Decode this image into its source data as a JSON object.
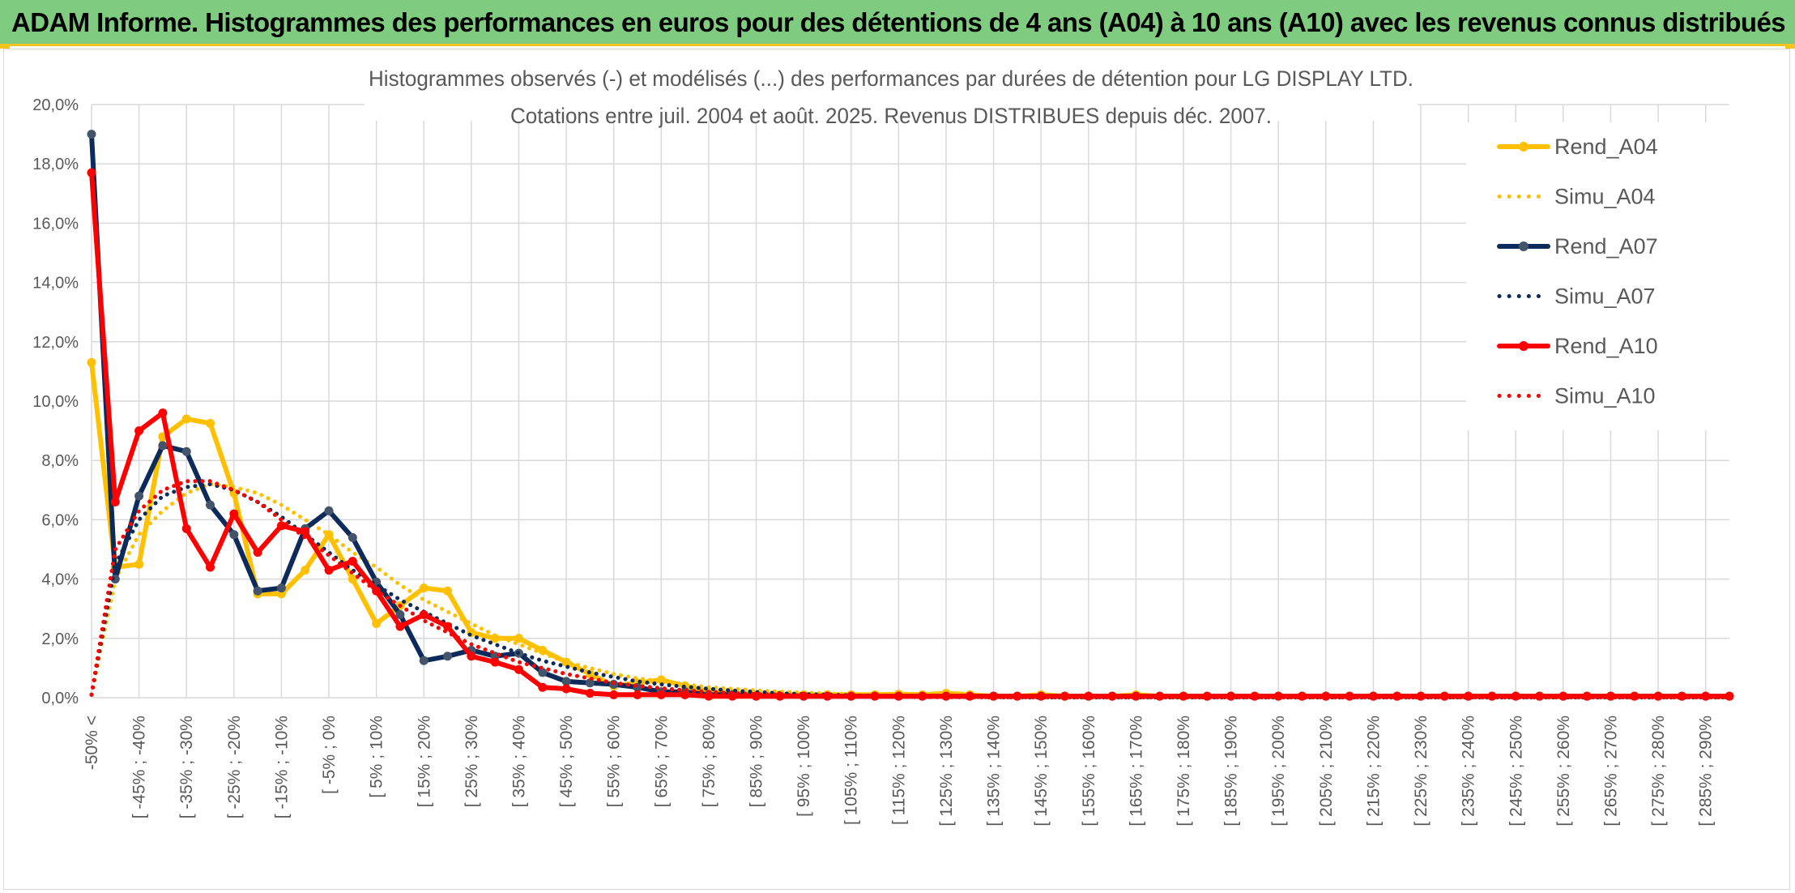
{
  "banner": {
    "title": "ADAM Informe. Histogrammes des performances en euros pour des détentions de 4 ans (A04) à 10 ans (A10) avec les revenus connus distribués"
  },
  "chart_data": {
    "type": "line",
    "title": "Histogrammes observés (-) et modélisés (...) des performances par durées de détention pour LG DISPLAY LTD.",
    "subtitle": "Cotations entre juil. 2004 et août. 2025. Revenus DISTRIBUES depuis déc. 2007.",
    "xlabel": "",
    "ylabel": "",
    "ylim": [
      0,
      20
    ],
    "yticks": [
      "0,0%",
      "2,0%",
      "4,0%",
      "6,0%",
      "8,0%",
      "10,0%",
      "12,0%",
      "14,0%",
      "16,0%",
      "18,0%",
      "20,0%"
    ],
    "grid": true,
    "legend_position": "right",
    "categories": [
      "-50% <",
      "",
      "[ -45% ; -40%",
      "",
      "[ -35% ; -30%",
      "",
      "[ -25% ; -20%",
      "",
      "[ -15% ; -10%",
      "",
      "[ -5% ; 0%",
      "",
      "[ 5% ; 10%",
      "",
      "[ 15% ; 20%",
      "",
      "[ 25% ; 30%",
      "",
      "[ 35% ; 40%",
      "",
      "[ 45% ; 50%",
      "",
      "[ 55% ; 60%",
      "",
      "[ 65% ; 70%",
      "",
      "[ 75% ; 80%",
      "",
      "[ 85% ; 90%",
      "",
      "[ 95% ; 100%",
      "",
      "[ 105% ; 110%",
      "",
      "[ 115% ; 120%",
      "",
      "[ 125% ; 130%",
      "",
      "[ 135% ; 140%",
      "",
      "[ 145% ; 150%",
      "",
      "[ 155% ; 160%",
      "",
      "[ 165% ; 170%",
      "",
      "[ 175% ; 180%",
      "",
      "[ 185% ; 190%",
      "",
      "[ 195% ; 200%",
      "",
      "[ 205% ; 210%",
      "",
      "[ 215% ; 220%",
      "",
      "[ 225% ; 230%",
      "",
      "[ 235% ; 240%",
      "",
      "[ 245% ; 250%",
      "",
      "[ 255% ; 260%",
      "",
      "[ 265% ; 270%",
      "",
      "[ 275% ; 280%",
      "",
      "[ 285% ; 290%",
      ""
    ],
    "series": [
      {
        "name": "Rend_A04",
        "color": "#ffc000",
        "style": "solid",
        "markers": true,
        "values": [
          11.3,
          4.4,
          4.5,
          8.8,
          9.4,
          9.25,
          6.9,
          3.5,
          3.5,
          4.3,
          5.5,
          4.0,
          2.5,
          3.1,
          3.7,
          3.6,
          2.2,
          2.0,
          2.0,
          1.6,
          1.2,
          0.8,
          0.4,
          0.5,
          0.6,
          0.4,
          0.2,
          0.15,
          0.1,
          0.1,
          0.1,
          0.1,
          0.1,
          0.1,
          0.12,
          0.1,
          0.15,
          0.1,
          0.05,
          0.05,
          0.1,
          0.05,
          0.05,
          0.05,
          0.1,
          0.05,
          0.05,
          0.05,
          0.05,
          0.05,
          0.05,
          0.05,
          0.05,
          0.05,
          0.05,
          0.05,
          0.05,
          0.05,
          0.05,
          0.05,
          0.05,
          0.05,
          0.05,
          0.05,
          0.05,
          0.05,
          0.05,
          0.05,
          0.05,
          0.05
        ]
      },
      {
        "name": "Simu_A04",
        "color": "#ffc000",
        "style": "dotted",
        "markers": false,
        "values": [
          0.1,
          4.0,
          5.5,
          6.3,
          6.9,
          7.2,
          7.1,
          6.9,
          6.5,
          6.0,
          5.5,
          4.9,
          4.4,
          3.8,
          3.3,
          2.9,
          2.5,
          2.1,
          1.8,
          1.5,
          1.2,
          1.0,
          0.8,
          0.65,
          0.55,
          0.45,
          0.35,
          0.3,
          0.25,
          0.2,
          0.17,
          0.14,
          0.12,
          0.1,
          0.08,
          0.07,
          0.06,
          0.05,
          0.04,
          0.035,
          0.03,
          0.025,
          0.02,
          0.02,
          0.015,
          0.01,
          0.01,
          0.01,
          0.01,
          0.01,
          0.01,
          0.01,
          0.01,
          0.01,
          0.01,
          0.01,
          0.01,
          0.01,
          0.01,
          0.01,
          0.01,
          0.01,
          0.01,
          0.01,
          0.01,
          0.01,
          0.01,
          0.01,
          0.01,
          0.01
        ]
      },
      {
        "name": "Rend_A07",
        "color": "#0c2a5a",
        "style": "solid",
        "markers": true,
        "values": [
          19.0,
          4.0,
          6.8,
          8.5,
          8.3,
          6.5,
          5.5,
          3.6,
          3.7,
          5.7,
          6.3,
          5.4,
          3.9,
          2.8,
          1.25,
          1.4,
          1.6,
          1.4,
          1.5,
          0.85,
          0.55,
          0.5,
          0.45,
          0.35,
          0.2,
          0.2,
          0.1,
          0.1,
          0.05,
          0.05,
          0.05,
          0.05,
          0.05,
          0.05,
          0.05,
          0.05,
          0.05,
          0.05,
          0.05,
          0.05,
          0.05,
          0.05,
          0.05,
          0.05,
          0.05,
          0.05,
          0.05,
          0.05,
          0.05,
          0.05,
          0.05,
          0.05,
          0.05,
          0.05,
          0.05,
          0.05,
          0.05,
          0.05,
          0.05,
          0.05,
          0.05,
          0.05,
          0.05,
          0.05,
          0.05,
          0.05,
          0.05,
          0.05,
          0.05,
          0.05
        ]
      },
      {
        "name": "Simu_A07",
        "color": "#0c2a5a",
        "style": "dotted",
        "markers": false,
        "values": [
          0.1,
          4.5,
          6.0,
          6.8,
          7.1,
          7.2,
          7.0,
          6.6,
          6.1,
          5.5,
          4.9,
          4.3,
          3.8,
          3.3,
          2.9,
          2.5,
          2.1,
          1.8,
          1.5,
          1.25,
          1.05,
          0.85,
          0.7,
          0.55,
          0.45,
          0.37,
          0.3,
          0.24,
          0.19,
          0.15,
          0.12,
          0.1,
          0.08,
          0.06,
          0.05,
          0.04,
          0.03,
          0.025,
          0.02,
          0.015,
          0.01,
          0.01,
          0.01,
          0.01,
          0.01,
          0.01,
          0.01,
          0.01,
          0.01,
          0.01,
          0.01,
          0.01,
          0.01,
          0.01,
          0.01,
          0.01,
          0.01,
          0.01,
          0.01,
          0.01,
          0.01,
          0.01,
          0.01,
          0.01,
          0.01,
          0.01,
          0.01,
          0.01,
          0.01,
          0.01
        ]
      },
      {
        "name": "Rend_A10",
        "color": "#ff0000",
        "style": "solid",
        "markers": true,
        "values": [
          17.7,
          6.6,
          9.0,
          9.6,
          5.7,
          4.4,
          6.2,
          4.9,
          5.8,
          5.6,
          4.3,
          4.6,
          3.6,
          2.4,
          2.8,
          2.4,
          1.4,
          1.2,
          0.95,
          0.35,
          0.3,
          0.15,
          0.1,
          0.1,
          0.1,
          0.1,
          0.05,
          0.05,
          0.05,
          0.05,
          0.05,
          0.05,
          0.05,
          0.05,
          0.05,
          0.05,
          0.05,
          0.05,
          0.05,
          0.05,
          0.05,
          0.05,
          0.05,
          0.05,
          0.05,
          0.05,
          0.05,
          0.05,
          0.05,
          0.05,
          0.05,
          0.05,
          0.05,
          0.05,
          0.05,
          0.05,
          0.05,
          0.05,
          0.05,
          0.05,
          0.05,
          0.05,
          0.05,
          0.05,
          0.05,
          0.05,
          0.05,
          0.05,
          0.05,
          0.05
        ]
      },
      {
        "name": "Simu_A10",
        "color": "#ff0000",
        "style": "dotted",
        "markers": false,
        "values": [
          0.1,
          5.0,
          6.3,
          7.0,
          7.3,
          7.3,
          7.0,
          6.6,
          6.0,
          5.4,
          4.8,
          4.2,
          3.6,
          3.1,
          2.6,
          2.2,
          1.8,
          1.5,
          1.2,
          1.0,
          0.8,
          0.65,
          0.5,
          0.4,
          0.32,
          0.25,
          0.2,
          0.15,
          0.12,
          0.1,
          0.08,
          0.06,
          0.05,
          0.04,
          0.03,
          0.02,
          0.02,
          0.015,
          0.01,
          0.01,
          0.01,
          0.01,
          0.01,
          0.01,
          0.01,
          0.01,
          0.01,
          0.01,
          0.01,
          0.01,
          0.01,
          0.01,
          0.01,
          0.01,
          0.01,
          0.01,
          0.01,
          0.01,
          0.01,
          0.01,
          0.01,
          0.01,
          0.01,
          0.01,
          0.01,
          0.01,
          0.01,
          0.01,
          0.01,
          0.01
        ]
      }
    ]
  }
}
